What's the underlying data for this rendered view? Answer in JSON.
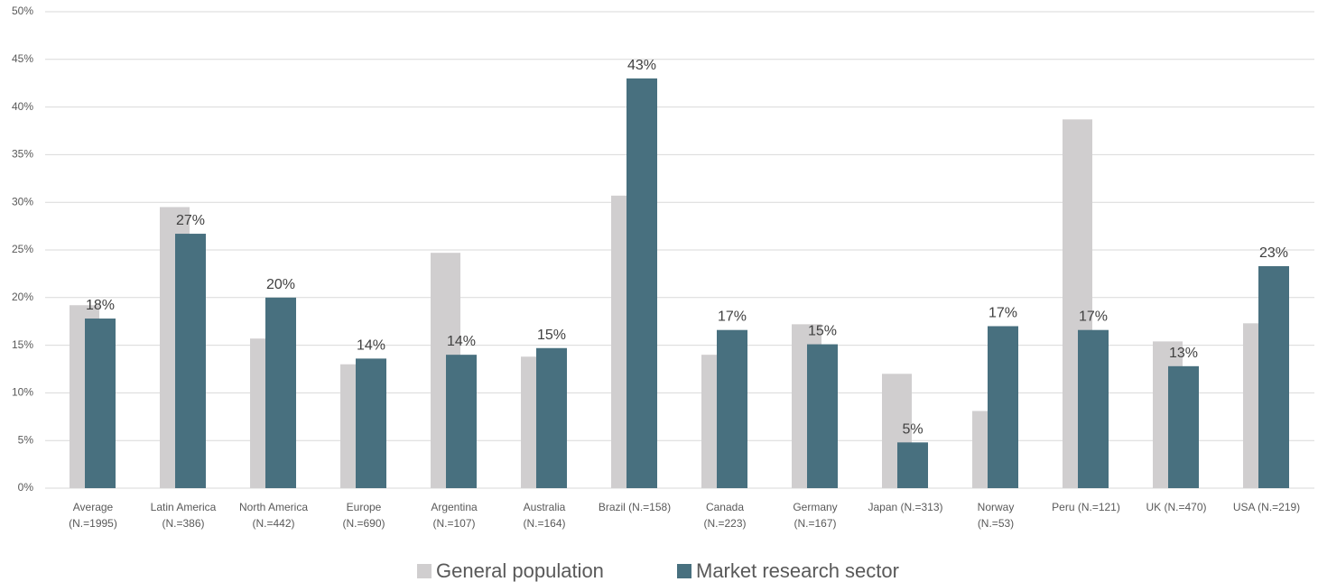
{
  "chart_data": {
    "type": "bar",
    "categories": [
      "Average\n(N.=1995)",
      "Latin America\n(N.=386)",
      "North America\n(N.=442)",
      "Europe\n(N.=690)",
      "Argentina\n(N.=107)",
      "Australia\n(N.=164)",
      "Brazil (N.=158)",
      "Canada\n(N.=223)",
      "Germany\n(N.=167)",
      "Japan (N.=313)",
      "Norway\n(N.=53)",
      "Peru (N.=121)",
      "UK (N.=470)",
      "USA (N.=219)"
    ],
    "series": [
      {
        "name": "General population",
        "color": "#d0cecf",
        "values": [
          19.2,
          29.5,
          15.7,
          13.0,
          24.7,
          13.8,
          30.7,
          14.0,
          17.2,
          12.0,
          8.1,
          38.7,
          15.4,
          17.3
        ]
      },
      {
        "name": "Market research sector",
        "color": "#48707f",
        "values": [
          17.8,
          26.7,
          20.0,
          13.6,
          14.0,
          14.7,
          43.0,
          16.6,
          15.1,
          4.8,
          17.0,
          16.6,
          12.8,
          23.3
        ],
        "value_labels": [
          "18%",
          "27%",
          "20%",
          "14%",
          "14%",
          "15%",
          "43%",
          "17%",
          "15%",
          "5%",
          "17%",
          "17%",
          "13%",
          "23%"
        ]
      }
    ],
    "ylim": [
      0,
      50
    ],
    "yticks": [
      {
        "value": 0,
        "label": "0%"
      },
      {
        "value": 5,
        "label": "5%"
      },
      {
        "value": 10,
        "label": "10%"
      },
      {
        "value": 15,
        "label": "15%"
      },
      {
        "value": 20,
        "label": "20%"
      },
      {
        "value": 25,
        "label": "25%"
      },
      {
        "value": 30,
        "label": "30%"
      },
      {
        "value": 35,
        "label": "35%"
      },
      {
        "value": 40,
        "label": "40%"
      },
      {
        "value": 45,
        "label": "45%"
      },
      {
        "value": 50,
        "label": "50%"
      }
    ],
    "grid": true,
    "legend": "bottom"
  }
}
